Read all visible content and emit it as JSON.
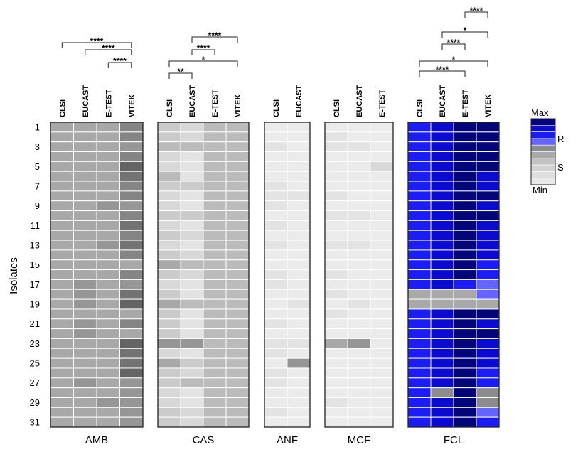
{
  "chart_data": {
    "type": "heatmap",
    "y_axis_label": "Isolates",
    "row_tick_labels": [
      "1",
      "3",
      "5",
      "7",
      "9",
      "11",
      "13",
      "15",
      "17",
      "19",
      "21",
      "23",
      "25",
      "27",
      "29",
      "31"
    ],
    "row_tick_rows": [
      1,
      3,
      5,
      7,
      9,
      11,
      13,
      15,
      17,
      19,
      21,
      23,
      25,
      27,
      29,
      31
    ],
    "n_rows": 31,
    "legend": {
      "max_label": "Max",
      "r_label": "R",
      "s_label": "S",
      "min_label": "Min",
      "scale": [
        9,
        8,
        7,
        6,
        5,
        4,
        3,
        2,
        1,
        0
      ]
    },
    "palette": [
      "#e9e9e9",
      "#dedede",
      "#d2d2d2",
      "#c2c2c2",
      "#a9a9a9",
      "#8c8c8c",
      "#6464ff",
      "#1c1cf5",
      "#0a0ad0",
      "#05057a"
    ],
    "gray_palette": [
      "#ebebeb",
      "#e3e3e3",
      "#d8d8d8",
      "#cbcbcb",
      "#bbbbbb",
      "#a8a8a8",
      "#969696",
      "#858585",
      "#737373",
      "#646464"
    ],
    "panels": [
      {
        "name": "AMB",
        "columns": [
          "CLSI",
          "EUCAST",
          "E-TEST",
          "VITEK"
        ],
        "values": [
          [
            5,
            5,
            5,
            7
          ],
          [
            5,
            5,
            5,
            7
          ],
          [
            5,
            5,
            5,
            6
          ],
          [
            5,
            5,
            5,
            7
          ],
          [
            5,
            5,
            5,
            9
          ],
          [
            5,
            5,
            5,
            8
          ],
          [
            5,
            5,
            5,
            7
          ],
          [
            5,
            5,
            5,
            7
          ],
          [
            5,
            5,
            6,
            6
          ],
          [
            5,
            5,
            5,
            7
          ],
          [
            5,
            5,
            5,
            8
          ],
          [
            5,
            5,
            5,
            7
          ],
          [
            5,
            5,
            6,
            8
          ],
          [
            5,
            5,
            5,
            7
          ],
          [
            5,
            5,
            5,
            5
          ],
          [
            5,
            5,
            5,
            7
          ],
          [
            5,
            6,
            5,
            6
          ],
          [
            5,
            6,
            5,
            8
          ],
          [
            5,
            6,
            5,
            9
          ],
          [
            5,
            5,
            5,
            5
          ],
          [
            5,
            6,
            5,
            7
          ],
          [
            5,
            6,
            5,
            5
          ],
          [
            5,
            5,
            5,
            9
          ],
          [
            5,
            5,
            5,
            8
          ],
          [
            5,
            5,
            5,
            8
          ],
          [
            5,
            5,
            5,
            9
          ],
          [
            5,
            6,
            5,
            6
          ],
          [
            5,
            5,
            5,
            6
          ],
          [
            5,
            5,
            6,
            6
          ],
          [
            5,
            5,
            5,
            6
          ],
          [
            5,
            5,
            5,
            6
          ]
        ],
        "comparisons": [
          {
            "from": "CLSI",
            "to": "VITEK",
            "label": "****"
          },
          {
            "from": "EUCAST",
            "to": "VITEK",
            "label": "****"
          },
          {
            "from": "E-TEST",
            "to": "VITEK",
            "label": "****"
          }
        ]
      },
      {
        "name": "CAS",
        "columns": [
          "CLSI",
          "EUCAST",
          "E-TEST",
          "VITEK"
        ],
        "values": [
          [
            3,
            2,
            4,
            4
          ],
          [
            3,
            2,
            4,
            4
          ],
          [
            4,
            4,
            4,
            4
          ],
          [
            2,
            1,
            4,
            4
          ],
          [
            2,
            1,
            4,
            4
          ],
          [
            4,
            1,
            4,
            4
          ],
          [
            3,
            3,
            4,
            4
          ],
          [
            2,
            1,
            4,
            4
          ],
          [
            2,
            1,
            4,
            4
          ],
          [
            3,
            3,
            4,
            4
          ],
          [
            2,
            1,
            4,
            4
          ],
          [
            3,
            2,
            4,
            4
          ],
          [
            2,
            1,
            4,
            4
          ],
          [
            3,
            2,
            4,
            4
          ],
          [
            5,
            4,
            4,
            4
          ],
          [
            3,
            2,
            4,
            4
          ],
          [
            2,
            1,
            4,
            4
          ],
          [
            3,
            1,
            4,
            4
          ],
          [
            5,
            4,
            4,
            4
          ],
          [
            3,
            1,
            4,
            4
          ],
          [
            3,
            1,
            4,
            4
          ],
          [
            3,
            1,
            4,
            4
          ],
          [
            6,
            6,
            4,
            4
          ],
          [
            2,
            1,
            4,
            4
          ],
          [
            5,
            3,
            4,
            4
          ],
          [
            3,
            2,
            4,
            4
          ],
          [
            3,
            4,
            4,
            4
          ],
          [
            2,
            1,
            4,
            4
          ],
          [
            2,
            1,
            4,
            4
          ],
          [
            3,
            2,
            4,
            4
          ],
          [
            3,
            2,
            4,
            4
          ]
        ],
        "comparisons": [
          {
            "from": "CLSI",
            "to": "EUCAST",
            "label": "**"
          },
          {
            "from": "CLSI",
            "to": "VITEK",
            "label": "*"
          },
          {
            "from": "EUCAST",
            "to": "E-TEST",
            "label": "****"
          },
          {
            "from": "EUCAST",
            "to": "VITEK",
            "label": "****"
          }
        ]
      },
      {
        "name": "ANF",
        "columns": [
          "CLSI",
          "EUCAST"
        ],
        "values": [
          [
            0,
            0
          ],
          [
            0,
            0
          ],
          [
            1,
            0
          ],
          [
            0,
            0
          ],
          [
            0,
            0
          ],
          [
            0,
            0
          ],
          [
            1,
            0
          ],
          [
            1,
            1
          ],
          [
            1,
            0
          ],
          [
            0,
            0
          ],
          [
            1,
            0
          ],
          [
            0,
            0
          ],
          [
            1,
            0
          ],
          [
            0,
            0
          ],
          [
            0,
            0
          ],
          [
            1,
            0
          ],
          [
            1,
            0
          ],
          [
            0,
            0
          ],
          [
            0,
            1
          ],
          [
            0,
            0
          ],
          [
            1,
            0
          ],
          [
            0,
            0
          ],
          [
            1,
            1
          ],
          [
            1,
            0
          ],
          [
            0,
            6
          ],
          [
            1,
            0
          ],
          [
            1,
            0
          ],
          [
            0,
            0
          ],
          [
            0,
            0
          ],
          [
            1,
            0
          ],
          [
            0,
            0
          ]
        ],
        "comparisons": []
      },
      {
        "name": "MCF",
        "columns": [
          "CLSI",
          "EUCAST",
          "E-TEST"
        ],
        "values": [
          [
            0,
            0,
            0
          ],
          [
            1,
            0,
            0
          ],
          [
            1,
            1,
            0
          ],
          [
            0,
            0,
            0
          ],
          [
            0,
            0,
            2
          ],
          [
            0,
            0,
            0
          ],
          [
            0,
            0,
            0
          ],
          [
            1,
            0,
            0
          ],
          [
            0,
            0,
            0
          ],
          [
            1,
            1,
            0
          ],
          [
            0,
            0,
            0
          ],
          [
            0,
            0,
            0
          ],
          [
            1,
            1,
            0
          ],
          [
            0,
            0,
            0
          ],
          [
            0,
            0,
            0
          ],
          [
            1,
            0,
            0
          ],
          [
            0,
            0,
            0
          ],
          [
            1,
            0,
            0
          ],
          [
            0,
            1,
            0
          ],
          [
            1,
            0,
            0
          ],
          [
            0,
            0,
            0
          ],
          [
            0,
            0,
            0
          ],
          [
            5,
            6,
            0
          ],
          [
            0,
            0,
            0
          ],
          [
            0,
            0,
            0
          ],
          [
            0,
            0,
            0
          ],
          [
            0,
            0,
            0
          ],
          [
            0,
            0,
            0
          ],
          [
            1,
            0,
            0
          ],
          [
            0,
            0,
            0
          ],
          [
            0,
            0,
            0
          ]
        ],
        "comparisons": []
      },
      {
        "name": "FCL",
        "columns": [
          "CLSI",
          "EUCAST",
          "E-TEST",
          "VITEK"
        ],
        "values": [
          [
            7,
            8,
            9,
            9
          ],
          [
            7,
            8,
            9,
            9
          ],
          [
            7,
            8,
            9,
            9
          ],
          [
            7,
            8,
            9,
            9
          ],
          [
            7,
            8,
            9,
            9
          ],
          [
            7,
            8,
            9,
            8
          ],
          [
            7,
            8,
            9,
            8
          ],
          [
            7,
            8,
            9,
            9
          ],
          [
            7,
            8,
            9,
            8
          ],
          [
            7,
            8,
            9,
            9
          ],
          [
            7,
            8,
            9,
            8
          ],
          [
            7,
            8,
            9,
            8
          ],
          [
            7,
            8,
            9,
            8
          ],
          [
            7,
            8,
            9,
            8
          ],
          [
            7,
            8,
            9,
            7
          ],
          [
            7,
            8,
            9,
            7
          ],
          [
            7,
            8,
            7,
            6
          ],
          [
            4,
            4,
            4,
            6
          ],
          [
            4,
            4,
            4,
            4
          ],
          [
            7,
            8,
            9,
            9
          ],
          [
            7,
            8,
            9,
            8
          ],
          [
            7,
            8,
            9,
            9
          ],
          [
            7,
            8,
            9,
            8
          ],
          [
            7,
            8,
            9,
            8
          ],
          [
            7,
            8,
            9,
            8
          ],
          [
            7,
            8,
            9,
            7
          ],
          [
            7,
            8,
            9,
            7
          ],
          [
            7,
            5,
            9,
            5
          ],
          [
            7,
            8,
            9,
            5
          ],
          [
            7,
            8,
            9,
            6
          ],
          [
            7,
            8,
            9,
            7
          ]
        ],
        "comparisons": [
          {
            "from": "CLSI",
            "to": "E-TEST",
            "label": "****"
          },
          {
            "from": "CLSI",
            "to": "VITEK",
            "label": "*"
          },
          {
            "from": "EUCAST",
            "to": "E-TEST",
            "label": "****"
          },
          {
            "from": "EUCAST",
            "to": "VITEK",
            "label": "*"
          },
          {
            "from": "E-TEST",
            "to": "VITEK",
            "label": "****"
          }
        ]
      }
    ]
  }
}
